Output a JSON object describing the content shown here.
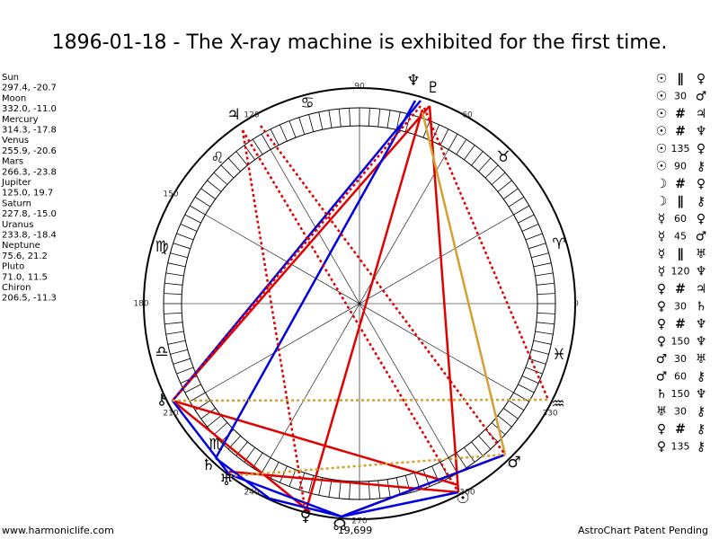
{
  "header": {
    "title": "1896-01-18 - The X-ray machine is exhibited for the first time."
  },
  "planets": [
    {
      "name": "Sun",
      "position": "297.4, -20.7"
    },
    {
      "name": "Moon",
      "position": "332.0, -11.0"
    },
    {
      "name": "Mercury",
      "position": "314.3, -17.8"
    },
    {
      "name": "Venus",
      "position": "255.9, -20.6"
    },
    {
      "name": "Mars",
      "position": "266.3, -23.8"
    },
    {
      "name": "Jupiter",
      "position": "125.0, 19.7"
    },
    {
      "name": "Saturn",
      "position": "227.8, -15.0"
    },
    {
      "name": "Uranus",
      "position": "233.8, -18.4"
    },
    {
      "name": "Neptune",
      "position": "75.6, 21.2"
    },
    {
      "name": "Pluto",
      "position": "71.0, 11.5"
    },
    {
      "name": "Chiron",
      "position": "206.5, -11.3"
    }
  ],
  "aspects": [
    [
      "☉",
      "∥",
      "♀"
    ],
    [
      "☉",
      "30",
      "♂"
    ],
    [
      "☉",
      "#",
      "♃"
    ],
    [
      "☉",
      "#",
      "♆"
    ],
    [
      "☉",
      "135",
      "♀"
    ],
    [
      "☉",
      "90",
      "⚷"
    ],
    [
      "☽",
      "#",
      "♀"
    ],
    [
      "☽",
      "∥",
      "⚷"
    ],
    [
      "☿",
      "60",
      "♀"
    ],
    [
      "☿",
      "45",
      "♂"
    ],
    [
      "☿",
      "∥",
      "♅"
    ],
    [
      "☿",
      "120",
      "♆"
    ],
    [
      "♀",
      "#",
      "♃"
    ],
    [
      "♀",
      "30",
      "♄"
    ],
    [
      "♀",
      "#",
      "♆"
    ],
    [
      "♀",
      "150",
      "♆"
    ],
    [
      "♂",
      "30",
      "♅"
    ],
    [
      "♂",
      "60",
      "⚷"
    ],
    [
      "♄",
      "150",
      "♆"
    ],
    [
      "♅",
      "30",
      "⚷"
    ],
    [
      "♀",
      "#",
      "⚷"
    ],
    [
      "♀",
      "135",
      "⚷"
    ]
  ],
  "wheel": {
    "degree_labels": [
      "0",
      "60",
      "90",
      "120",
      "150",
      "180",
      "210",
      "240",
      "270",
      "300",
      "330"
    ],
    "sign_glyphs": [
      "♈",
      "♉",
      "♋",
      "♌",
      "♍",
      "♎",
      "♏",
      "♒",
      "♓"
    ],
    "planet_glyphs": [
      "♆",
      "♇",
      "♃",
      "⚷",
      "♄",
      "♅",
      "♀",
      "☊",
      "☉",
      "♂"
    ],
    "center_note": "19,699"
  },
  "footer": {
    "left": "www.harmoniclife.com",
    "right": "AstroChart Patent Pending"
  }
}
